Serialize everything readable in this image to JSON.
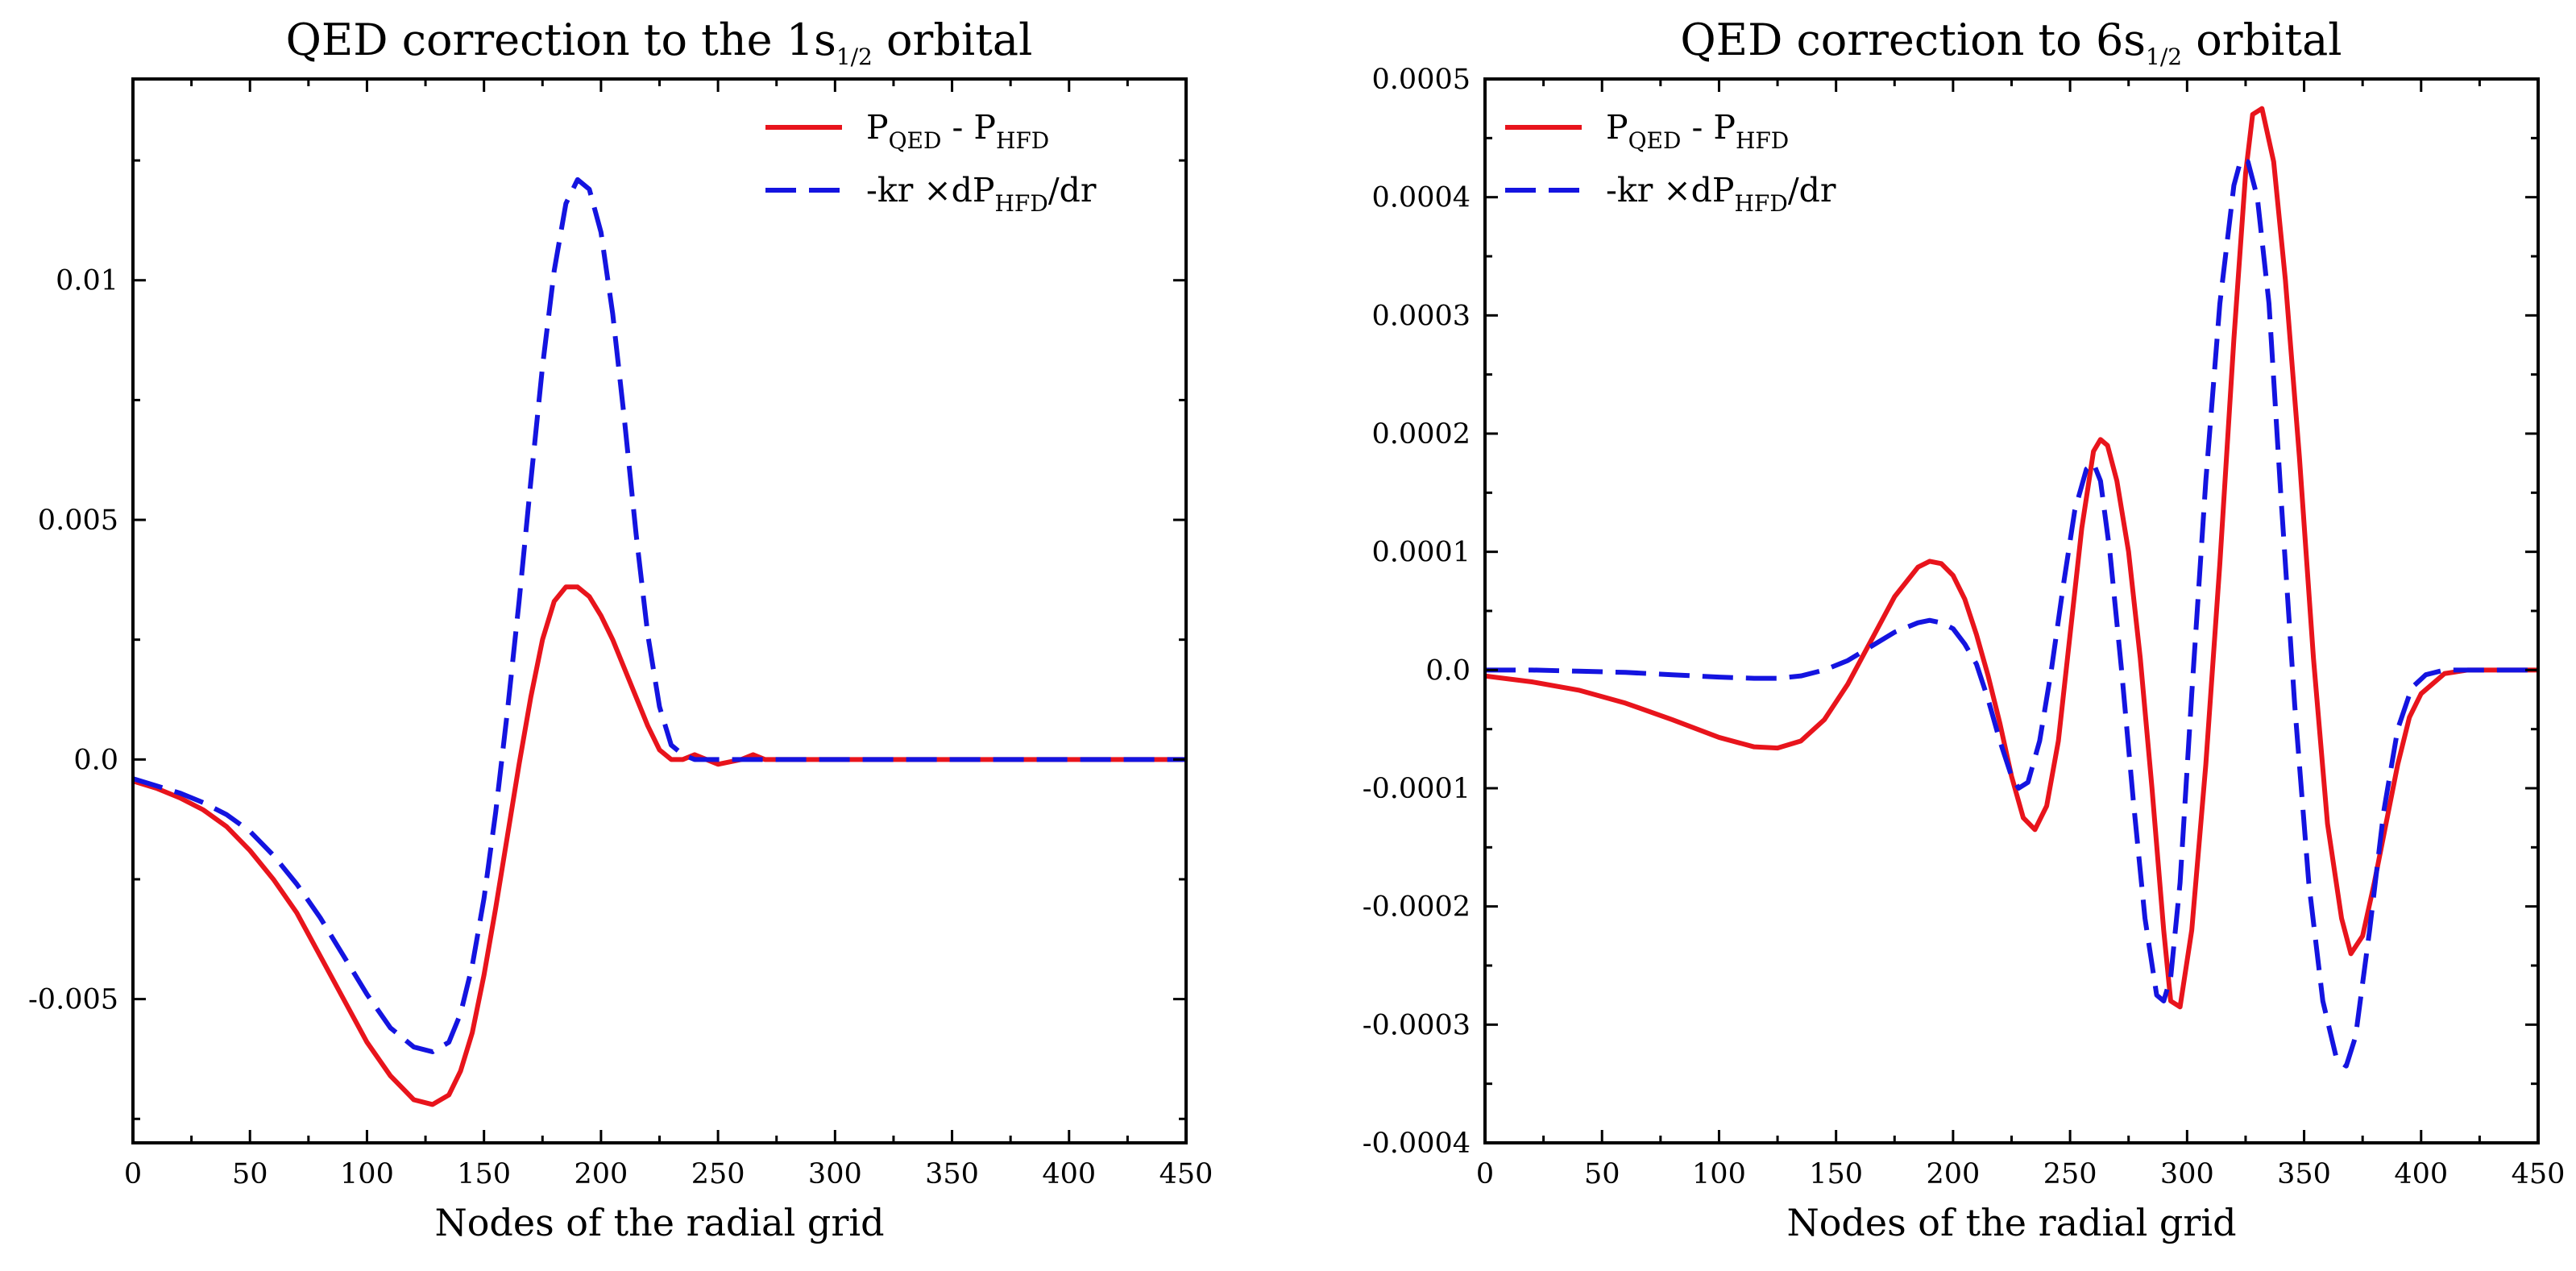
{
  "chart_data": [
    {
      "type": "line",
      "title": "QED correction to the 1s",
      "title_sub": "1/2",
      "title_suffix": " orbital",
      "xlabel": "Nodes of the radial grid",
      "ylabel": "",
      "xlim": [
        0,
        450
      ],
      "ylim": [
        -0.008,
        0.0142
      ],
      "xticks": [
        0,
        50,
        100,
        150,
        200,
        250,
        300,
        350,
        400,
        450
      ],
      "xtick_labels": [
        "0",
        "50",
        "100",
        "150",
        "200",
        "250",
        "300",
        "350",
        "400",
        "450"
      ],
      "yticks": [
        -0.005,
        0.0,
        0.005,
        0.01
      ],
      "ytick_labels": [
        "-0.005",
        "0.0",
        "0.005",
        "0.01"
      ],
      "legend_position": "top-right",
      "series": [
        {
          "name": "P_QED - P_HFD",
          "legend_parts": [
            "P",
            "QED",
            " - P",
            "HFD"
          ],
          "color": "#e8141c",
          "style": "solid",
          "x": [
            0,
            10,
            20,
            30,
            40,
            50,
            60,
            70,
            80,
            90,
            100,
            110,
            120,
            128,
            135,
            140,
            145,
            150,
            155,
            160,
            165,
            170,
            175,
            180,
            185,
            190,
            195,
            200,
            205,
            210,
            215,
            220,
            225,
            230,
            235,
            240,
            245,
            250,
            255,
            260,
            265,
            270,
            280,
            300,
            350,
            400,
            450
          ],
          "y": [
            -0.00045,
            -0.0006,
            -0.0008,
            -0.00105,
            -0.0014,
            -0.0019,
            -0.0025,
            -0.0032,
            -0.0041,
            -0.005,
            -0.0059,
            -0.0066,
            -0.0071,
            -0.0072,
            -0.007,
            -0.0065,
            -0.0057,
            -0.0045,
            -0.0031,
            -0.0016,
            -0.0001,
            0.0013,
            0.0025,
            0.0033,
            0.0036,
            0.0036,
            0.0034,
            0.003,
            0.0025,
            0.0019,
            0.0013,
            0.0007,
            0.0002,
            0.0,
            0.0,
            0.0001,
            0.0,
            -0.0001,
            -5e-05,
            0.0,
            0.0001,
            0.0,
            0.0,
            0.0,
            0.0,
            0.0,
            0.0
          ]
        },
        {
          "name": "-kr ×dP_HFD/dr",
          "legend_parts": [
            "-kr ×dP",
            "HFD",
            "/dr",
            ""
          ],
          "color": "#1414e0",
          "style": "dashed",
          "x": [
            0,
            10,
            20,
            30,
            40,
            50,
            60,
            70,
            80,
            90,
            100,
            110,
            120,
            128,
            135,
            140,
            145,
            150,
            155,
            160,
            165,
            170,
            175,
            180,
            185,
            190,
            195,
            200,
            205,
            210,
            215,
            220,
            225,
            230,
            235,
            240,
            250,
            260,
            280,
            300,
            350,
            400,
            450
          ],
          "y": [
            -0.0004,
            -0.00055,
            -0.0007,
            -0.0009,
            -0.00115,
            -0.0015,
            -0.002,
            -0.0026,
            -0.0033,
            -0.0041,
            -0.0049,
            -0.0056,
            -0.006,
            -0.0061,
            -0.0059,
            -0.0053,
            -0.0043,
            -0.0029,
            -0.0011,
            0.001,
            0.0033,
            0.0058,
            0.0082,
            0.0102,
            0.0116,
            0.0121,
            0.0119,
            0.011,
            0.0093,
            0.0071,
            0.0047,
            0.0026,
            0.0011,
            0.0003,
            0.0001,
            0.0,
            0.0,
            0.0,
            0.0,
            0.0,
            0.0,
            0.0,
            0.0
          ]
        }
      ]
    },
    {
      "type": "line",
      "title": "QED correction to 6s",
      "title_sub": "1/2",
      "title_suffix": " orbital",
      "xlabel": "Nodes of the radial grid",
      "ylabel": "",
      "xlim": [
        0,
        450
      ],
      "ylim": [
        -0.0004,
        0.0005
      ],
      "xticks": [
        0,
        50,
        100,
        150,
        200,
        250,
        300,
        350,
        400,
        450
      ],
      "xtick_labels": [
        "0",
        "50",
        "100",
        "150",
        "200",
        "250",
        "300",
        "350",
        "400",
        "450"
      ],
      "yticks": [
        -0.0004,
        -0.0003,
        -0.0002,
        -0.0001,
        0.0,
        0.0001,
        0.0002,
        0.0003,
        0.0004,
        0.0005
      ],
      "ytick_labels": [
        "-0.0004",
        "-0.0003",
        "-0.0002",
        "-0.0001",
        "0.0",
        "0.0001",
        "0.0002",
        "0.0003",
        "0.0004",
        "0.0005"
      ],
      "legend_position": "top-left",
      "series": [
        {
          "name": "P_QED - P_HFD",
          "legend_parts": [
            "P",
            "QED",
            " - P",
            "HFD"
          ],
          "color": "#e8141c",
          "style": "solid",
          "x": [
            0,
            20,
            40,
            60,
            80,
            100,
            115,
            125,
            135,
            145,
            155,
            165,
            175,
            185,
            190,
            195,
            200,
            205,
            210,
            215,
            220,
            225,
            230,
            235,
            240,
            245,
            250,
            255,
            260,
            263,
            266,
            270,
            275,
            280,
            285,
            290,
            293,
            297,
            302,
            308,
            314,
            320,
            325,
            328,
            332,
            337,
            342,
            348,
            354,
            360,
            366,
            370,
            375,
            380,
            385,
            390,
            395,
            400,
            410,
            420,
            450
          ],
          "y": [
            -5e-06,
            -1e-05,
            -1.7e-05,
            -2.8e-05,
            -4.2e-05,
            -5.7e-05,
            -6.5e-05,
            -6.6e-05,
            -6e-05,
            -4.2e-05,
            -1.2e-05,
            2.5e-05,
            6.2e-05,
            8.7e-05,
            9.2e-05,
            9e-05,
            8e-05,
            6e-05,
            3e-05,
            -5e-06,
            -4.5e-05,
            -9e-05,
            -0.000125,
            -0.000135,
            -0.000115,
            -6e-05,
            3e-05,
            0.00012,
            0.000185,
            0.000195,
            0.00019,
            0.00016,
            0.0001,
            1e-05,
            -0.0001,
            -0.00022,
            -0.00028,
            -0.000285,
            -0.00022,
            -8e-05,
            9e-05,
            0.00028,
            0.00042,
            0.00047,
            0.000475,
            0.00043,
            0.00033,
            0.00018,
            1e-05,
            -0.00013,
            -0.00021,
            -0.00024,
            -0.000225,
            -0.00018,
            -0.00013,
            -8e-05,
            -4e-05,
            -2e-05,
            -3e-06,
            0.0,
            0.0
          ]
        },
        {
          "name": "-kr ×dP_HFD/dr",
          "legend_parts": [
            "-kr ×dP",
            "HFD",
            "/dr",
            ""
          ],
          "color": "#1414e0",
          "style": "dashed",
          "x": [
            0,
            20,
            40,
            60,
            80,
            100,
            115,
            125,
            135,
            145,
            155,
            165,
            175,
            185,
            190,
            195,
            200,
            205,
            210,
            215,
            220,
            225,
            228,
            232,
            237,
            242,
            247,
            252,
            257,
            260,
            263,
            267,
            272,
            277,
            282,
            287,
            290,
            293,
            297,
            302,
            308,
            314,
            320,
            323,
            326,
            330,
            335,
            340,
            346,
            352,
            358,
            364,
            368,
            372,
            378,
            384,
            390,
            396,
            402,
            410,
            420,
            450
          ],
          "y": [
            0.0,
            0.0,
            -1e-06,
            -2e-06,
            -4e-06,
            -6e-06,
            -7e-06,
            -7e-06,
            -5e-06,
            0.0,
            8e-06,
            2e-05,
            3.2e-05,
            4e-05,
            4.2e-05,
            4e-05,
            3.5e-05,
            2.2e-05,
            5e-06,
            -2.5e-05,
            -6e-05,
            -9e-05,
            -0.0001,
            -9.5e-05,
            -6e-05,
            0.0,
            7e-05,
            0.000135,
            0.00017,
            0.000175,
            0.00016,
            0.0001,
            0.0,
            -0.00011,
            -0.00021,
            -0.000275,
            -0.00028,
            -0.00026,
            -0.00018,
            -2e-05,
            0.00016,
            0.00031,
            0.00041,
            0.000432,
            0.00043,
            0.0004,
            0.00031,
            0.00015,
            -3e-05,
            -0.00018,
            -0.00028,
            -0.00033,
            -0.000335,
            -0.00031,
            -0.00022,
            -0.00012,
            -5e-05,
            -1.5e-05,
            -4e-06,
            0.0,
            0.0,
            0.0
          ]
        }
      ]
    }
  ]
}
